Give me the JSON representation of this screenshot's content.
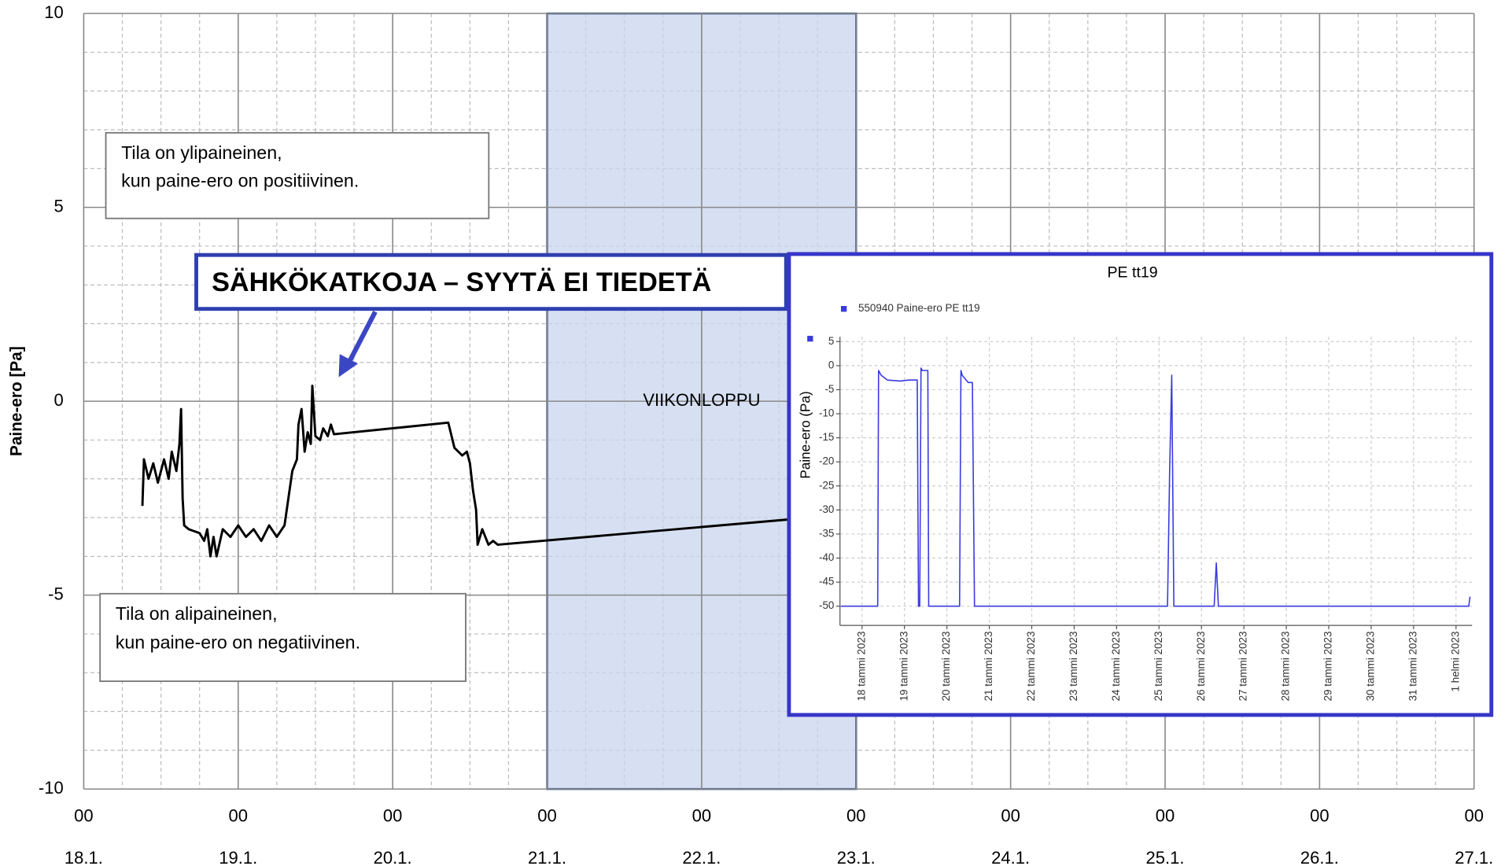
{
  "chart_data": [
    {
      "type": "line",
      "y_label": "Paine-ero [Pa]",
      "xlim": [
        0,
        9
      ],
      "ylim": [
        -10,
        10
      ],
      "yticks": [
        -10,
        -5,
        0,
        5,
        10
      ],
      "xticks": [
        {
          "value": 0,
          "label": "18.1."
        },
        {
          "value": 1,
          "label": "19.1."
        },
        {
          "value": 2,
          "label": "20.1."
        },
        {
          "value": 3,
          "label": "21.1."
        },
        {
          "value": 4,
          "label": "22.1."
        },
        {
          "value": 5,
          "label": "23.1."
        },
        {
          "value": 6,
          "label": "24.1."
        },
        {
          "value": 7,
          "label": "25.1."
        },
        {
          "value": 8,
          "label": "26.1."
        },
        {
          "value": 9,
          "label": "27.1."
        }
      ],
      "xtick_time_labels": [
        "00",
        "00",
        "00",
        "00",
        "00",
        "00",
        "00",
        "00",
        "00",
        "00"
      ],
      "grid": true,
      "series": [
        {
          "color": "#000000",
          "x": [
            0.38,
            0.39,
            0.42,
            0.45,
            0.48,
            0.52,
            0.55,
            0.57,
            0.6,
            0.62,
            0.63,
            0.64,
            0.65,
            0.68,
            0.75,
            0.78,
            0.8,
            0.82,
            0.84,
            0.86,
            0.9,
            0.95,
            1.0,
            1.05,
            1.1,
            1.15,
            1.2,
            1.25,
            1.3,
            1.35,
            1.38,
            1.39,
            1.41,
            1.43,
            1.45,
            1.47,
            1.48,
            1.5,
            1.53,
            1.55,
            1.58,
            1.6,
            1.62,
            2.36,
            2.4,
            2.45,
            2.48,
            2.5,
            2.52,
            2.54,
            2.55,
            2.58,
            2.62,
            2.65,
            2.68,
            4.56
          ],
          "values": [
            -2.7,
            -1.5,
            -2.0,
            -1.6,
            -2.1,
            -1.5,
            -2.0,
            -1.3,
            -1.8,
            -1.1,
            -0.2,
            -2.5,
            -3.2,
            -3.3,
            -3.4,
            -3.6,
            -3.3,
            -4.0,
            -3.5,
            -4.0,
            -3.3,
            -3.5,
            -3.2,
            -3.5,
            -3.3,
            -3.6,
            -3.2,
            -3.5,
            -3.2,
            -1.8,
            -1.5,
            -0.6,
            -0.2,
            -1.3,
            -0.8,
            -1.1,
            0.4,
            -0.9,
            -1.0,
            -0.7,
            -0.9,
            -0.6,
            -0.85,
            -0.55,
            -1.2,
            -1.4,
            -1.3,
            -1.6,
            -2.3,
            -2.8,
            -3.7,
            -3.3,
            -3.7,
            -3.6,
            -3.7,
            -3.05
          ]
        }
      ],
      "highlight": {
        "xrange": [
          3,
          5
        ],
        "label": "VIIKONLOPPU"
      },
      "annotations": [
        {
          "lines": [
            "Tila on ylipaineinen,",
            "kun paine-ero on positiivinen."
          ]
        },
        {
          "lines": [
            "Tila on alipaineinen,",
            "kun paine-ero on negatiivinen."
          ]
        },
        {
          "lines": [
            "SÄHKÖKATKOJA – SYYTÄ EI TIEDETÄ"
          ]
        }
      ]
    },
    {
      "type": "line",
      "title": "PE tt19",
      "y_label": "Paine-ero (Pa)",
      "xlim": [
        -0.52,
        14.38
      ],
      "ylim": [
        -54,
        6
      ],
      "yticks": [
        5,
        0,
        -5,
        -10,
        -15,
        -20,
        -25,
        -30,
        -35,
        -40,
        -45,
        -50
      ],
      "xticks": [
        {
          "value": 0,
          "label": "18 tammi 2023"
        },
        {
          "value": 1,
          "label": "19 tammi 2023"
        },
        {
          "value": 2,
          "label": "20 tammi 2023"
        },
        {
          "value": 3,
          "label": "21 tammi 2023"
        },
        {
          "value": 4,
          "label": "22 tammi 2023"
        },
        {
          "value": 5,
          "label": "23 tammi 2023"
        },
        {
          "value": 6,
          "label": "24 tammi 2023"
        },
        {
          "value": 7,
          "label": "25 tammi 2023"
        },
        {
          "value": 8,
          "label": "26 tammi 2023"
        },
        {
          "value": 9,
          "label": "27 tammi 2023"
        },
        {
          "value": 10,
          "label": "28 tammi 2023"
        },
        {
          "value": 11,
          "label": "29 tammi 2023"
        },
        {
          "value": 12,
          "label": "30 tammi 2023"
        },
        {
          "value": 13,
          "label": "31 tammi 2023"
        },
        {
          "value": 14,
          "label": "1 helmi 2023"
        }
      ],
      "grid": true,
      "series": [
        {
          "name": "550940  Paine-ero PE tt19",
          "color": "#3a3ae0",
          "x": [
            -0.5,
            0.37,
            0.39,
            0.45,
            0.6,
            0.9,
            1.1,
            1.3,
            1.33,
            1.36,
            1.39,
            1.42,
            1.55,
            1.57,
            1.6,
            2.3,
            2.33,
            2.36,
            2.5,
            2.6,
            2.65,
            2.7,
            7.2,
            7.25,
            7.3,
            7.35,
            8.3,
            8.35,
            8.4,
            14.3,
            14.33
          ],
          "values": [
            -50,
            -50,
            -1,
            -2,
            -3,
            -3.2,
            -3,
            -3,
            -50,
            -50,
            -0.5,
            -1,
            -1,
            -50,
            -50,
            -50,
            -1,
            -2,
            -3.5,
            -3.5,
            -50,
            -50,
            -50,
            -22,
            -2,
            -50,
            -50,
            -41,
            -50,
            -50,
            -48
          ]
        }
      ]
    }
  ]
}
